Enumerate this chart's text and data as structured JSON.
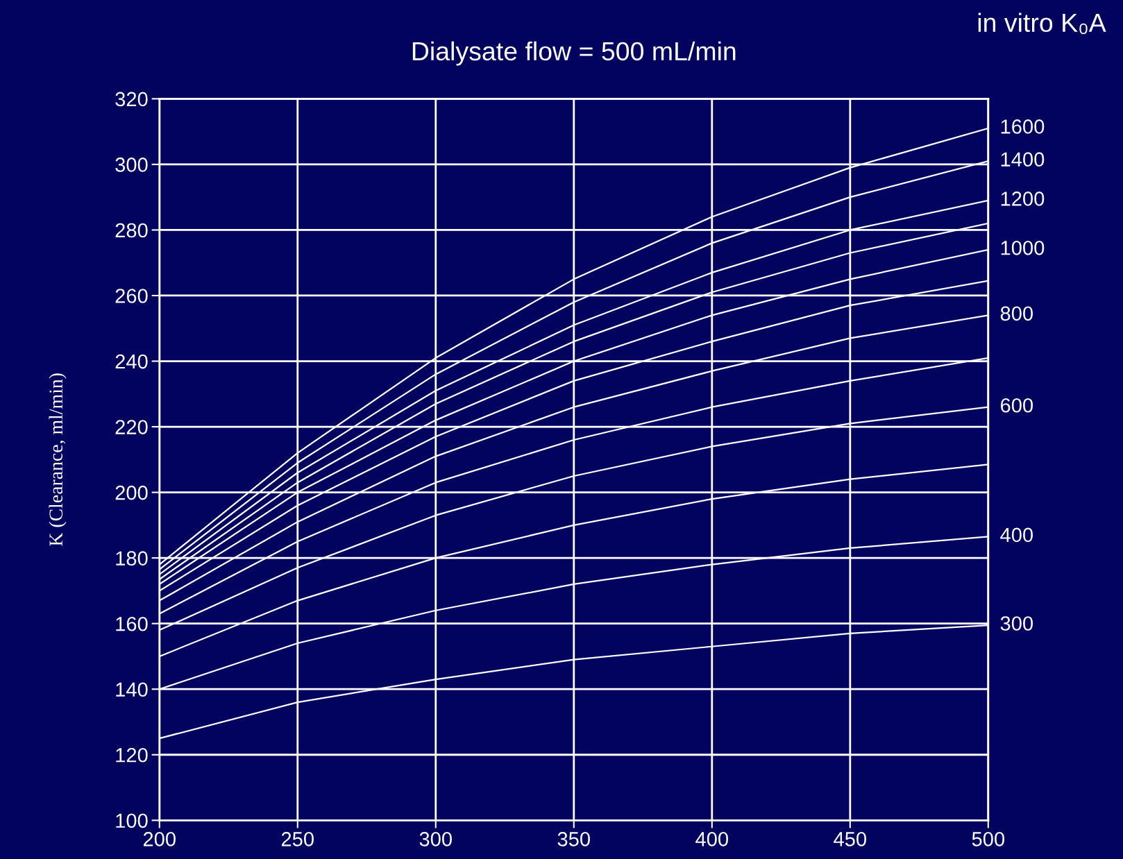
{
  "chart_data": {
    "type": "line",
    "title": "Dialysate flow = 500 mL/min",
    "ylabel": "K (Clearance, ml/min)",
    "legend_title": "in vitro K₀A",
    "x": [
      200,
      250,
      300,
      350,
      400,
      450,
      500
    ],
    "xlim": [
      200,
      500
    ],
    "xticks": [
      200,
      250,
      300,
      350,
      400,
      450,
      500
    ],
    "ylim": [
      100,
      320
    ],
    "yticks": [
      100,
      120,
      140,
      160,
      180,
      200,
      220,
      240,
      260,
      280,
      300,
      320
    ],
    "grid": true,
    "marker": "none",
    "line_style": "solid",
    "series": [
      {
        "name": "1600",
        "color": "#ffffff",
        "values": [
          178,
          212,
          241,
          265,
          284,
          299,
          311
        ]
      },
      {
        "name": "1400",
        "color": "#ffffff",
        "values": [
          176.5,
          209,
          236,
          258,
          276,
          290,
          301
        ]
      },
      {
        "name": "1200",
        "color": "#ffffff",
        "values": [
          175,
          206,
          231,
          251,
          267,
          280,
          289
        ]
      },
      {
        "color": "#ffffff",
        "values": [
          173.5,
          203,
          227,
          246,
          261,
          273,
          282
        ]
      },
      {
        "name": "1000",
        "color": "#ffffff",
        "values": [
          172,
          200,
          222,
          240,
          254,
          265,
          274
        ]
      },
      {
        "color": "#ffffff",
        "values": [
          170,
          196,
          217,
          234,
          246,
          257,
          264.5
        ]
      },
      {
        "name": "800",
        "color": "#ffffff",
        "values": [
          167,
          191,
          211,
          226,
          237,
          247,
          254
        ]
      },
      {
        "color": "#ffffff",
        "values": [
          163,
          185,
          203,
          216,
          226,
          234,
          241
        ]
      },
      {
        "name": "600",
        "color": "#ffffff",
        "values": [
          158,
          177,
          193,
          205,
          214,
          221,
          226
        ]
      },
      {
        "color": "#ffffff",
        "values": [
          150,
          167,
          180,
          190,
          198,
          204,
          208.5
        ]
      },
      {
        "name": "400",
        "color": "#ffffff",
        "values": [
          140,
          154,
          164,
          172,
          178,
          183,
          186.5
        ]
      },
      {
        "name": "300",
        "color": "#ffffff",
        "values": [
          125,
          136,
          143,
          149,
          153,
          157,
          159.5
        ]
      }
    ]
  }
}
